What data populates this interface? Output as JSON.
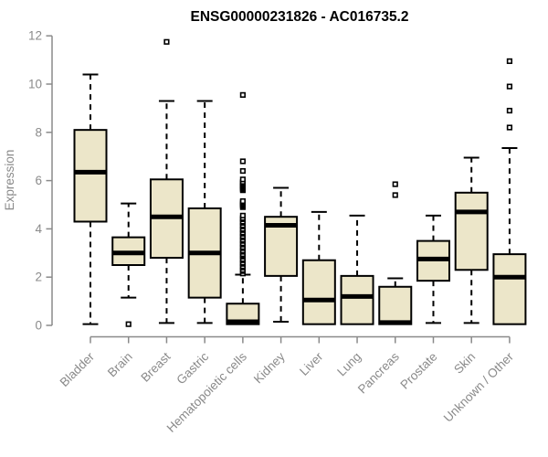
{
  "page": {
    "background": "#ffffff"
  },
  "chart_data": {
    "type": "boxplot",
    "title": "ENSG00000231826 - AC016735.2",
    "ylabel": "Expression",
    "xlabel": "",
    "ylim": [
      0,
      12
    ],
    "yticks": [
      0,
      2,
      4,
      6,
      8,
      10,
      12
    ],
    "grid": false,
    "legend": "none",
    "x_labels_rotation_deg": -45,
    "categories": [
      "Bladder",
      "Brain",
      "Breast",
      "Gastric",
      "Hematopoietic cells",
      "Kidney",
      "Liver",
      "Lung",
      "Pancreas",
      "Prostate",
      "Skin",
      "Unknown / Other"
    ],
    "boxes": [
      {
        "category": "Bladder",
        "whisker_low": 0.05,
        "q1": 4.3,
        "median": 6.35,
        "q3": 8.1,
        "whisker_high": 10.4,
        "outliers": []
      },
      {
        "category": "Brain",
        "whisker_low": 1.15,
        "q1": 2.5,
        "median": 3.0,
        "q3": 3.65,
        "whisker_high": 5.05,
        "outliers": [
          0.05
        ]
      },
      {
        "category": "Breast",
        "whisker_low": 0.1,
        "q1": 2.8,
        "median": 4.5,
        "q3": 6.05,
        "whisker_high": 9.3,
        "outliers": [
          11.75
        ]
      },
      {
        "category": "Gastric",
        "whisker_low": 0.1,
        "q1": 1.15,
        "median": 3.0,
        "q3": 4.85,
        "whisker_high": 9.3,
        "outliers": []
      },
      {
        "category": "Hematopoietic cells",
        "whisker_low": 0.05,
        "q1": 0.05,
        "median": 0.15,
        "q3": 0.9,
        "whisker_high": 2.1,
        "outliers": [
          2.15,
          2.25,
          2.3,
          2.4,
          2.45,
          2.55,
          2.6,
          2.7,
          2.75,
          2.85,
          2.9,
          2.95,
          3.05,
          3.1,
          3.2,
          3.25,
          3.35,
          3.4,
          3.5,
          3.55,
          3.65,
          3.7,
          3.8,
          3.85,
          3.95,
          4.0,
          4.1,
          4.15,
          4.25,
          4.3,
          4.4,
          4.45,
          4.55,
          4.9,
          4.95,
          5.0,
          5.05,
          5.1,
          5.15,
          5.6,
          5.65,
          5.7,
          5.75,
          5.8,
          5.85,
          5.9,
          5.95,
          6.05,
          6.4,
          6.8,
          9.55
        ]
      },
      {
        "category": "Kidney",
        "whisker_low": 0.15,
        "q1": 2.05,
        "median": 4.15,
        "q3": 4.5,
        "whisker_high": 5.7,
        "outliers": []
      },
      {
        "category": "Liver",
        "whisker_low": 0.05,
        "q1": 0.05,
        "median": 1.05,
        "q3": 2.7,
        "whisker_high": 4.7,
        "outliers": []
      },
      {
        "category": "Lung",
        "whisker_low": 0.05,
        "q1": 0.05,
        "median": 1.2,
        "q3": 2.05,
        "whisker_high": 4.55,
        "outliers": []
      },
      {
        "category": "Pancreas",
        "whisker_low": 0.05,
        "q1": 0.05,
        "median": 0.12,
        "q3": 1.6,
        "whisker_high": 1.95,
        "outliers": [
          5.4,
          5.85
        ]
      },
      {
        "category": "Prostate",
        "whisker_low": 0.1,
        "q1": 1.85,
        "median": 2.75,
        "q3": 3.5,
        "whisker_high": 4.55,
        "outliers": []
      },
      {
        "category": "Skin",
        "whisker_low": 0.1,
        "q1": 2.3,
        "median": 4.7,
        "q3": 5.5,
        "whisker_high": 6.95,
        "outliers": []
      },
      {
        "category": "Unknown / Other",
        "whisker_low": 0.05,
        "q1": 0.05,
        "median": 2.0,
        "q3": 2.95,
        "whisker_high": 7.35,
        "outliers": [
          8.2,
          8.9,
          9.9,
          10.95
        ]
      }
    ],
    "colors": {
      "box_fill": "#ece6c9",
      "box_border": "#000000",
      "median": "#000000",
      "whisker": "#000000",
      "outlier_stroke": "#000000",
      "outlier_fill": "#ffffff",
      "axis": "#8a8a8a",
      "tick_label": "#8a8a8a",
      "title": "#000000",
      "background": "#ffffff"
    }
  }
}
